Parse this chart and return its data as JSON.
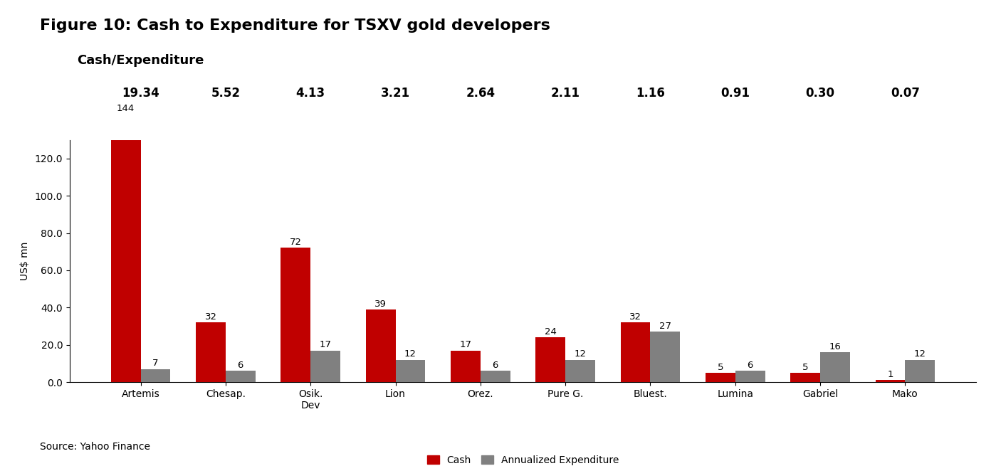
{
  "title": "Figure 10: Cash to Expenditure for TSXV gold developers",
  "subtitle": "Cash/Expenditure",
  "ylabel": "US$ mn",
  "source": "Source: Yahoo Finance",
  "categories": [
    "Artemis",
    "Chesap.",
    "Osik.\nDev",
    "Lion",
    "Orez.",
    "Pure G.",
    "Bluest.",
    "Lumina",
    "Gabriel",
    "Mako"
  ],
  "cash_values": [
    144,
    32,
    72,
    39,
    17,
    24,
    32,
    5,
    5,
    1
  ],
  "expenditure_values": [
    7,
    6,
    17,
    12,
    6,
    12,
    27,
    6,
    16,
    12
  ],
  "ratios": [
    "19.34",
    "5.52",
    "4.13",
    "3.21",
    "2.64",
    "2.11",
    "1.16",
    "0.91",
    "0.30",
    "0.07"
  ],
  "cash_color": "#C00000",
  "expenditure_color": "#808080",
  "bar_width": 0.35,
  "ylim": [
    0,
    130
  ],
  "yticks": [
    0.0,
    20.0,
    40.0,
    60.0,
    80.0,
    100.0,
    120.0
  ],
  "legend_labels": [
    "Cash",
    "Annualized Expenditure"
  ],
  "title_fontsize": 16,
  "subtitle_fontsize": 13,
  "label_fontsize": 10,
  "ratio_fontsize": 12,
  "bar_label_fontsize": 9.5,
  "source_fontsize": 10
}
